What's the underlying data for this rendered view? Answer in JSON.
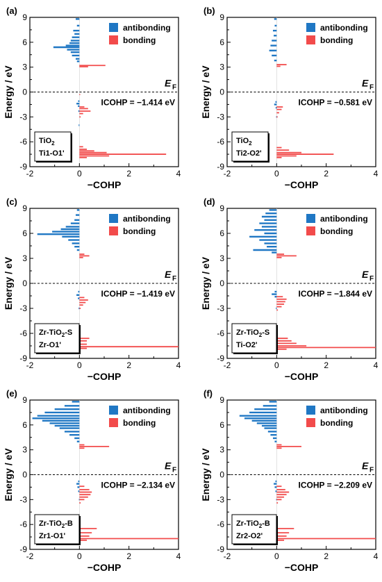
{
  "legend": {
    "antibonding": "antibonding",
    "bonding": "bonding",
    "antibonding_color": "#1f77c4",
    "bonding_color": "#f24b4b"
  },
  "axes": {
    "ylabel": "Energy / eV",
    "xlabel": "−COHP",
    "fermi_label": "E",
    "fermi_sub": "F",
    "xlim": [
      -2,
      4
    ],
    "ylim": [
      -9,
      9
    ],
    "xticks": [
      "-2",
      "0",
      "2",
      "4"
    ],
    "yticks": [
      "9",
      "6",
      "3",
      "0",
      "-3",
      "-6",
      "-9"
    ]
  },
  "chart_data": [
    {
      "type": "area",
      "panel": "(a)",
      "icohp": "ICOHP = −1.414 eV",
      "label_line1": "TiO",
      "label_line1_sub": "2",
      "label_line1_tail": "",
      "label_line2": "Ti1-O1'",
      "antibonding": [
        [
          8.8,
          -0.15
        ],
        [
          8.0,
          -0.1
        ],
        [
          7.4,
          -0.25
        ],
        [
          7.0,
          -0.2
        ],
        [
          6.6,
          -0.3
        ],
        [
          6.2,
          -0.35
        ],
        [
          5.9,
          -0.4
        ],
        [
          5.6,
          -0.55
        ],
        [
          5.4,
          -1.05
        ],
        [
          5.1,
          -0.5
        ],
        [
          4.8,
          -0.35
        ],
        [
          4.4,
          -0.3
        ],
        [
          4.0,
          -0.15
        ],
        [
          3.7,
          -0.1
        ],
        [
          -1.1,
          -0.05
        ],
        [
          -1.4,
          -0.12
        ],
        [
          -1.7,
          -0.06
        ],
        [
          -2.3,
          -0.04
        ],
        [
          -4.0,
          -0.03
        ]
      ],
      "bonding": [
        [
          3.2,
          1.05
        ],
        [
          3.05,
          0.35
        ],
        [
          -0.3,
          0.03
        ],
        [
          -1.8,
          0.2
        ],
        [
          -2.0,
          0.35
        ],
        [
          -2.3,
          0.45
        ],
        [
          -2.6,
          0.15
        ],
        [
          -3.0,
          0.05
        ],
        [
          -6.6,
          0.15
        ],
        [
          -6.9,
          0.3
        ],
        [
          -7.1,
          0.6
        ],
        [
          -7.3,
          1.1
        ],
        [
          -7.5,
          3.5
        ],
        [
          -7.7,
          1.2
        ],
        [
          -7.9,
          0.3
        ]
      ]
    },
    {
      "type": "area",
      "panel": "(b)",
      "icohp": "ICOHP = −0.581 eV",
      "label_line1": "TiO",
      "label_line1_sub": "2",
      "label_line1_tail": "",
      "label_line2": "Ti2-O2'",
      "antibonding": [
        [
          8.8,
          -0.1
        ],
        [
          8.0,
          -0.08
        ],
        [
          7.4,
          -0.15
        ],
        [
          6.8,
          -0.12
        ],
        [
          6.2,
          -0.2
        ],
        [
          5.6,
          -0.25
        ],
        [
          5.0,
          -0.3
        ],
        [
          4.4,
          -0.2
        ],
        [
          3.8,
          -0.1
        ],
        [
          -1.2,
          -0.05
        ],
        [
          -1.5,
          -0.1
        ],
        [
          -1.9,
          -0.04
        ],
        [
          -3.0,
          -0.02
        ]
      ],
      "bonding": [
        [
          3.3,
          0.4
        ],
        [
          3.1,
          0.15
        ],
        [
          -1.8,
          0.25
        ],
        [
          -2.1,
          0.2
        ],
        [
          -2.5,
          0.1
        ],
        [
          -3.0,
          0.04
        ],
        [
          -6.7,
          0.2
        ],
        [
          -7.0,
          0.5
        ],
        [
          -7.3,
          1.0
        ],
        [
          -7.5,
          2.3
        ],
        [
          -7.7,
          0.8
        ],
        [
          -7.9,
          0.2
        ]
      ]
    },
    {
      "type": "area",
      "panel": "(c)",
      "icohp": "ICOHP = −1.419 eV",
      "label_line1": "Zr-TiO",
      "label_line1_sub": "2",
      "label_line1_tail": "-S",
      "label_line2": "Zr-O1'",
      "antibonding": [
        [
          8.8,
          -0.1
        ],
        [
          8.2,
          -0.15
        ],
        [
          7.6,
          -0.2
        ],
        [
          7.2,
          -0.35
        ],
        [
          6.8,
          -0.55
        ],
        [
          6.5,
          -0.75
        ],
        [
          6.2,
          -1.1
        ],
        [
          5.9,
          -1.7
        ],
        [
          5.6,
          -0.7
        ],
        [
          5.2,
          -0.45
        ],
        [
          4.8,
          -0.3
        ],
        [
          4.4,
          -0.2
        ],
        [
          4.0,
          -0.1
        ],
        [
          -1.0,
          -0.05
        ],
        [
          -1.4,
          -0.12
        ],
        [
          -1.8,
          -0.06
        ],
        [
          -3.0,
          -0.03
        ]
      ],
      "bonding": [
        [
          3.5,
          0.2
        ],
        [
          3.3,
          0.4
        ],
        [
          3.1,
          0.15
        ],
        [
          -1.7,
          0.2
        ],
        [
          -2.0,
          0.35
        ],
        [
          -2.3,
          0.25
        ],
        [
          -2.6,
          0.15
        ],
        [
          -3.0,
          0.05
        ],
        [
          -6.6,
          0.4
        ],
        [
          -6.9,
          0.3
        ],
        [
          -7.3,
          0.3
        ],
        [
          -7.6,
          4.0
        ],
        [
          -7.8,
          0.3
        ]
      ]
    },
    {
      "type": "area",
      "panel": "(d)",
      "icohp": "ICOHP = −1.844 eV",
      "label_line1": "Zr-TiO",
      "label_line1_sub": "2",
      "label_line1_tail": "-S",
      "label_line2": "Ti-O2'",
      "antibonding": [
        [
          8.8,
          -0.3
        ],
        [
          8.4,
          -0.45
        ],
        [
          8.0,
          -0.6
        ],
        [
          7.6,
          -0.5
        ],
        [
          7.2,
          -0.7
        ],
        [
          6.8,
          -0.6
        ],
        [
          6.4,
          -0.9
        ],
        [
          6.0,
          -0.5
        ],
        [
          5.6,
          -1.1
        ],
        [
          5.2,
          -0.7
        ],
        [
          4.8,
          -0.5
        ],
        [
          4.4,
          -0.4
        ],
        [
          4.0,
          -0.95
        ],
        [
          3.7,
          -0.2
        ],
        [
          -1.0,
          -0.08
        ],
        [
          -1.3,
          -0.2
        ],
        [
          -1.6,
          -0.08
        ],
        [
          -3.0,
          -0.03
        ]
      ],
      "bonding": [
        [
          3.5,
          0.3
        ],
        [
          3.3,
          0.8
        ],
        [
          3.1,
          0.2
        ],
        [
          -1.6,
          0.25
        ],
        [
          -1.9,
          0.4
        ],
        [
          -2.2,
          0.35
        ],
        [
          -2.5,
          0.3
        ],
        [
          -2.8,
          0.2
        ],
        [
          -3.2,
          0.05
        ],
        [
          -6.6,
          0.45
        ],
        [
          -6.9,
          0.6
        ],
        [
          -7.2,
          0.8
        ],
        [
          -7.5,
          1.2
        ],
        [
          -7.7,
          4.0
        ],
        [
          -7.9,
          0.4
        ]
      ]
    },
    {
      "type": "area",
      "panel": "(e)",
      "icohp": "ICOHP = −2.134 eV",
      "label_line1": "Zr-TiO",
      "label_line1_sub": "2",
      "label_line1_tail": "-B",
      "label_line2": "Zr1-O1'",
      "antibonding": [
        [
          8.8,
          -0.3
        ],
        [
          8.3,
          -0.6
        ],
        [
          7.9,
          -1.0
        ],
        [
          7.5,
          -1.4
        ],
        [
          7.1,
          -1.7
        ],
        [
          6.8,
          -1.9
        ],
        [
          6.5,
          -1.5
        ],
        [
          6.2,
          -1.2
        ],
        [
          5.9,
          -1.0
        ],
        [
          5.6,
          -0.8
        ],
        [
          5.2,
          -0.6
        ],
        [
          4.8,
          -0.4
        ],
        [
          4.4,
          -0.2
        ],
        [
          4.0,
          -0.1
        ],
        [
          -0.8,
          -0.05
        ],
        [
          -1.1,
          -0.12
        ],
        [
          -1.5,
          -0.08
        ],
        [
          -2.0,
          -0.05
        ],
        [
          -3.0,
          -0.02
        ]
      ],
      "bonding": [
        [
          3.6,
          0.2
        ],
        [
          3.4,
          1.2
        ],
        [
          3.2,
          0.2
        ],
        [
          -1.4,
          0.2
        ],
        [
          -1.8,
          0.4
        ],
        [
          -2.1,
          0.5
        ],
        [
          -2.4,
          0.45
        ],
        [
          -2.7,
          0.35
        ],
        [
          -3.0,
          0.2
        ],
        [
          -3.4,
          0.05
        ],
        [
          -6.5,
          0.7
        ],
        [
          -7.0,
          0.5
        ],
        [
          -7.4,
          0.4
        ],
        [
          -7.7,
          4.0
        ],
        [
          -7.9,
          0.3
        ]
      ]
    },
    {
      "type": "area",
      "panel": "(f)",
      "icohp": "ICOHP = −2.209 eV",
      "label_line1": "Zr-TiO",
      "label_line1_sub": "2",
      "label_line1_tail": "-B",
      "label_line2": "Zr2-O2'",
      "antibonding": [
        [
          8.8,
          -0.3
        ],
        [
          8.3,
          -0.55
        ],
        [
          7.9,
          -0.9
        ],
        [
          7.5,
          -1.1
        ],
        [
          7.1,
          -1.5
        ],
        [
          6.8,
          -1.3
        ],
        [
          6.5,
          -1.0
        ],
        [
          6.2,
          -0.8
        ],
        [
          5.9,
          -0.6
        ],
        [
          5.6,
          -0.5
        ],
        [
          5.2,
          -0.35
        ],
        [
          4.8,
          -0.25
        ],
        [
          4.4,
          -0.15
        ],
        [
          4.0,
          -0.08
        ],
        [
          -0.8,
          -0.05
        ],
        [
          -1.1,
          -0.12
        ],
        [
          -1.5,
          -0.08
        ],
        [
          -2.0,
          -0.05
        ],
        [
          -3.0,
          -0.02
        ]
      ],
      "bonding": [
        [
          3.6,
          0.2
        ],
        [
          3.4,
          1.0
        ],
        [
          3.2,
          0.2
        ],
        [
          -1.4,
          0.2
        ],
        [
          -1.8,
          0.35
        ],
        [
          -2.1,
          0.5
        ],
        [
          -2.4,
          0.4
        ],
        [
          -2.7,
          0.3
        ],
        [
          -3.0,
          0.2
        ],
        [
          -3.4,
          0.05
        ],
        [
          -6.5,
          0.7
        ],
        [
          -7.0,
          0.5
        ],
        [
          -7.4,
          0.4
        ],
        [
          -7.7,
          4.0
        ],
        [
          -7.9,
          0.3
        ]
      ]
    }
  ]
}
